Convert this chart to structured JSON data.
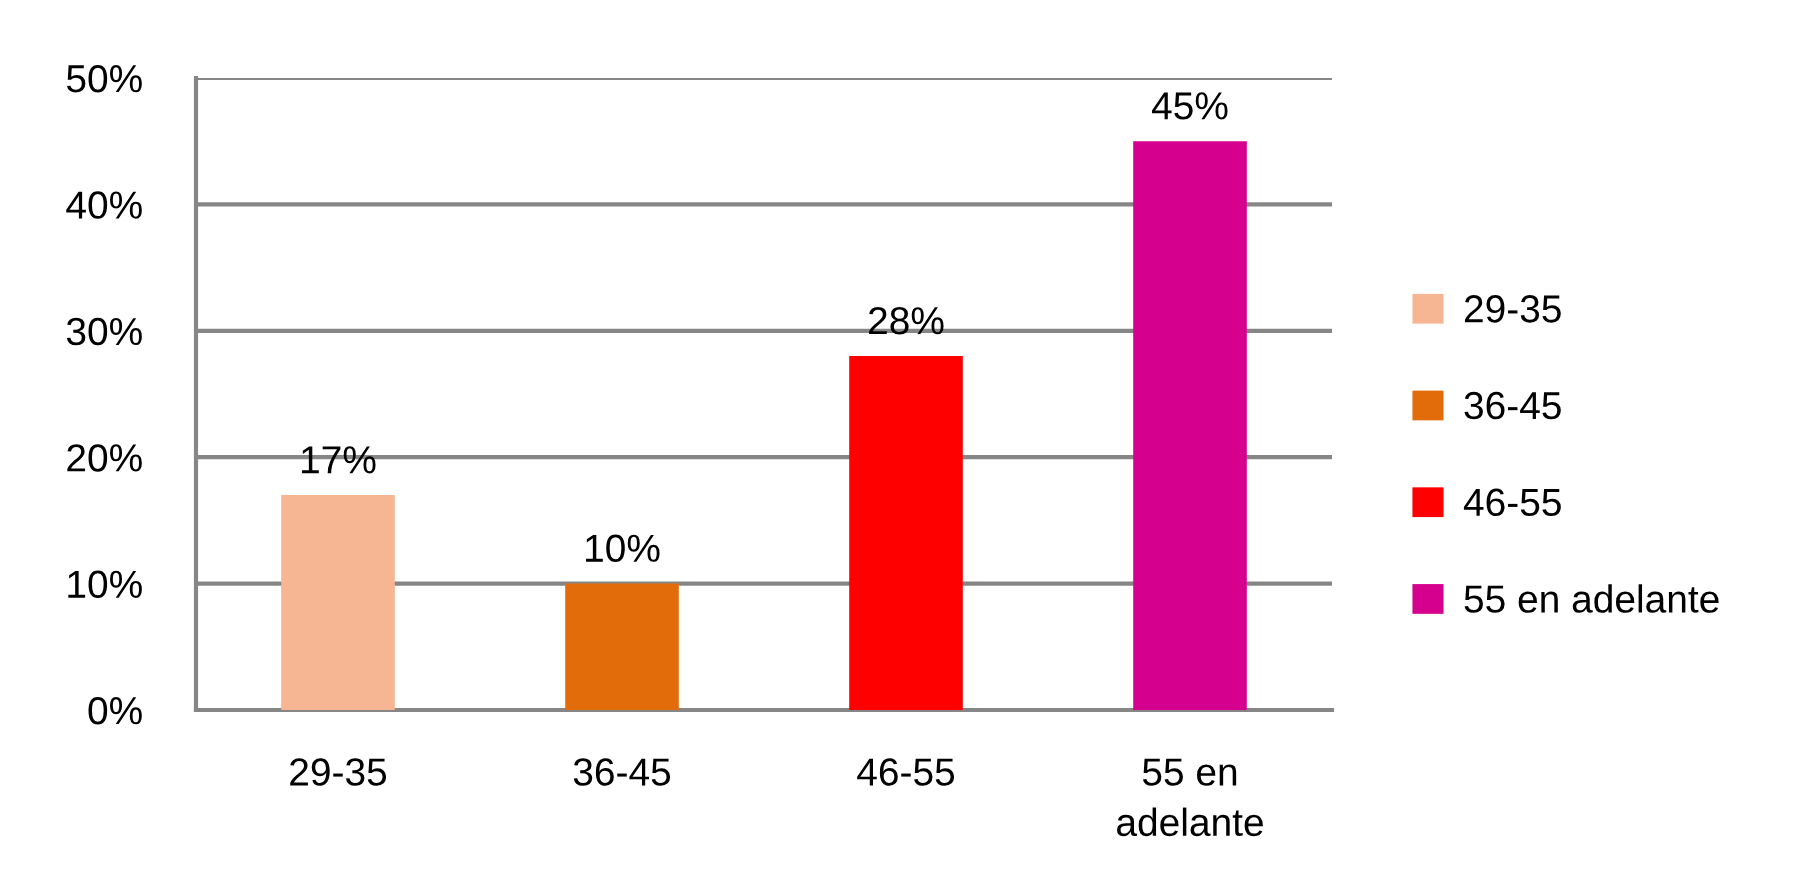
{
  "chart_data": {
    "type": "bar",
    "stacked": true,
    "categories": [
      "29-35",
      "36-45",
      "46-55",
      "55 en\nadelante"
    ],
    "series": [
      {
        "name": "29-35",
        "color": "#f6b593",
        "values": [
          17,
          null,
          null,
          null
        ],
        "value_labels": [
          "17%",
          null,
          null,
          null
        ]
      },
      {
        "name": "36-45",
        "color": "#e36c0a",
        "values": [
          null,
          10,
          null,
          null
        ],
        "value_labels": [
          null,
          "10%",
          null,
          null
        ]
      },
      {
        "name": "46-55",
        "color": "#ff0000",
        "values": [
          null,
          null,
          28,
          null
        ],
        "value_labels": [
          null,
          null,
          "28%",
          null
        ]
      },
      {
        "name": "55 en adelante",
        "color": "#d6008f",
        "values": [
          null,
          null,
          null,
          45
        ],
        "value_labels": [
          null,
          null,
          null,
          "45%"
        ]
      }
    ],
    "ylim": [
      0,
      50
    ],
    "yticks": [
      {
        "value": 0,
        "label": "0%"
      },
      {
        "value": 10,
        "label": "10%"
      },
      {
        "value": 20,
        "label": "20%"
      },
      {
        "value": 30,
        "label": "30%"
      },
      {
        "value": 40,
        "label": "40%"
      },
      {
        "value": 50,
        "label": "50%"
      }
    ],
    "grid": "y",
    "legend": "right"
  }
}
